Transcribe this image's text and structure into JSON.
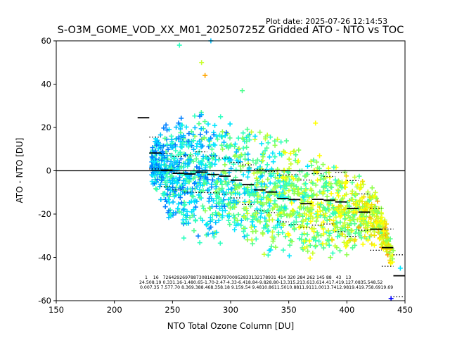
{
  "header": {
    "plot_date": "Plot date: 2025-07-26 12:14:53"
  },
  "chart_data": {
    "type": "scatter",
    "title": "S-O3M_GOME_VOD_XX_M01_20250725Z Gridded ATO - NTO vs TOC",
    "xlabel": "NTO Total Ozone Column [DU]",
    "ylabel": "ATO - NTO [DU]",
    "xlim": [
      150,
      450
    ],
    "ylim": [
      -60,
      60
    ],
    "xticks": [
      150,
      200,
      250,
      300,
      350,
      400,
      450
    ],
    "yticks": [
      -60,
      -40,
      -20,
      0,
      20,
      40,
      60
    ],
    "grid": false,
    "zero_line": 0,
    "marker": "+",
    "point_colors": [
      "#0000ff",
      "#0080ff",
      "#00c0ff",
      "#00e5ff",
      "#30ffc0",
      "#50ff90",
      "#90ff50",
      "#c8ff2c",
      "#ffff00",
      "#f0e000",
      "#ffa500"
    ],
    "scatter_cloud": [
      {
        "x": 232,
        "y_min": -6,
        "y_max": 15
      },
      {
        "x": 245,
        "y_min": -25,
        "y_max": 24
      },
      {
        "x": 260,
        "y_min": -33,
        "y_max": 28
      },
      {
        "x": 275,
        "y_min": -36,
        "y_max": 30
      },
      {
        "x": 290,
        "y_min": -38,
        "y_max": 26
      },
      {
        "x": 305,
        "y_min": -38,
        "y_max": 24
      },
      {
        "x": 320,
        "y_min": -40,
        "y_max": 22
      },
      {
        "x": 335,
        "y_min": -41,
        "y_max": 20
      },
      {
        "x": 350,
        "y_min": -42,
        "y_max": 17
      },
      {
        "x": 365,
        "y_min": -44,
        "y_max": 12
      },
      {
        "x": 380,
        "y_min": -45,
        "y_max": 9
      },
      {
        "x": 395,
        "y_min": -43,
        "y_max": 6
      },
      {
        "x": 410,
        "y_min": -38,
        "y_max": 0
      },
      {
        "x": 425,
        "y_min": -35,
        "y_max": -6
      },
      {
        "x": 440,
        "y_min": -45,
        "y_max": -36
      }
    ],
    "outliers": [
      {
        "x": 256,
        "y": 58
      },
      {
        "x": 275,
        "y": 50
      },
      {
        "x": 278,
        "y": 44
      },
      {
        "x": 283,
        "y": 60
      },
      {
        "x": 310,
        "y": 37
      },
      {
        "x": 373,
        "y": 22
      },
      {
        "x": 438,
        "y": -59
      },
      {
        "x": 446,
        "y": -45
      }
    ],
    "bin_stats": {
      "bins": [
        225,
        235,
        245,
        255,
        265,
        275,
        285,
        295,
        305,
        315,
        325,
        335,
        345,
        355,
        365,
        375,
        385,
        395,
        405,
        415,
        425,
        435,
        445
      ],
      "mean": [
        24.5,
        8.19,
        0.33,
        -1.16,
        -1.48,
        -0.65,
        -1.7,
        -2.47,
        -4.33,
        -6.41,
        -8.84,
        -9.82,
        -12.8,
        -13.3,
        -15.2,
        -13.2,
        -13.6,
        -14.4,
        -17.4,
        -19.1,
        -27.0,
        -35.5,
        -48.5
      ],
      "std": [
        0.0,
        7.35,
        7.57,
        7.7,
        8.36,
        9.38,
        8.46,
        8.35,
        8.18,
        9.15,
        9.54,
        9.48,
        10.8,
        11.5,
        10.9,
        11.9,
        11.0,
        13.7,
        12.9,
        8.4,
        9.7,
        8.6,
        9.7
      ],
      "counts_row": "1    16   72642926978873081628879700952833132178931 414 320 284 262 145 88   43   13",
      "means_row": "24.508.19 0.331.16-1.480.65-1.70-2.47-4.33-6.418.84-9.828.80-13.315.213.613.614.417.419.127.0835.548.52",
      "stds_row": "0.007.35 7.577.70 8.369.388.468.358.18 9.159.54 9.4810.8611.5010.8811.9111.0013.7412.9819.419.758.6919.69"
    },
    "legend": null
  }
}
